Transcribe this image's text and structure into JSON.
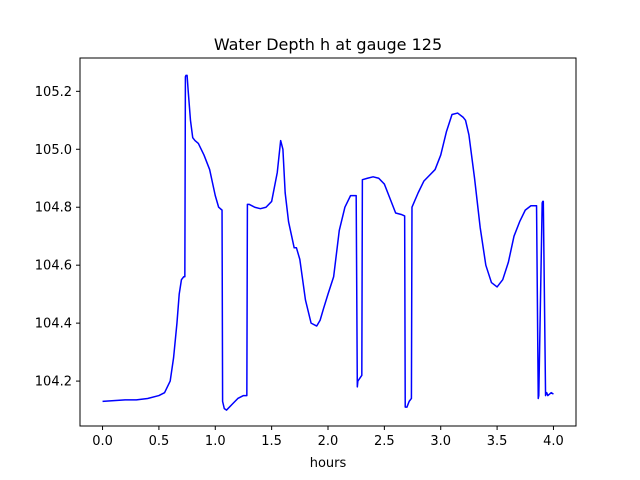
{
  "chart_data": {
    "type": "line",
    "title": "Water Depth h at gauge 125",
    "xlabel": "hours",
    "ylabel": "",
    "xlim": [
      -0.2,
      4.2
    ],
    "ylim": [
      104.045,
      105.315
    ],
    "grid": false,
    "legend": "none",
    "x_ticks": [
      0.0,
      0.5,
      1.0,
      1.5,
      2.0,
      2.5,
      3.0,
      3.5,
      4.0
    ],
    "x_tick_labels": [
      "0.0",
      "0.5",
      "1.0",
      "1.5",
      "2.0",
      "2.5",
      "3.0",
      "3.5",
      "4.0"
    ],
    "y_ticks": [
      104.2,
      104.4,
      104.6,
      104.8,
      105.0,
      105.2
    ],
    "y_tick_labels": [
      "104.2",
      "104.4",
      "104.6",
      "104.8",
      "105.0",
      "105.2"
    ],
    "series": [
      {
        "color": "#0000ff",
        "x": [
          0.0,
          0.2,
          0.3,
          0.4,
          0.5,
          0.55,
          0.6,
          0.63,
          0.66,
          0.68,
          0.7,
          0.72,
          0.73,
          0.735,
          0.74,
          0.75,
          0.76,
          0.78,
          0.8,
          0.82,
          0.85,
          0.9,
          0.95,
          1.0,
          1.03,
          1.06,
          1.065,
          1.08,
          1.1,
          1.15,
          1.2,
          1.25,
          1.28,
          1.285,
          1.3,
          1.35,
          1.4,
          1.45,
          1.5,
          1.55,
          1.58,
          1.6,
          1.62,
          1.65,
          1.7,
          1.72,
          1.75,
          1.8,
          1.85,
          1.9,
          1.93,
          1.96,
          2.0,
          2.05,
          2.1,
          2.15,
          2.2,
          2.25,
          2.26,
          2.265,
          2.3,
          2.305,
          2.35,
          2.4,
          2.45,
          2.5,
          2.55,
          2.6,
          2.65,
          2.68,
          2.685,
          2.7,
          2.72,
          2.74,
          2.745,
          2.8,
          2.85,
          2.9,
          2.95,
          3.0,
          3.05,
          3.1,
          3.15,
          3.2,
          3.22,
          3.25,
          3.3,
          3.35,
          3.4,
          3.45,
          3.5,
          3.55,
          3.6,
          3.65,
          3.7,
          3.75,
          3.8,
          3.85,
          3.865,
          3.87,
          3.9,
          3.905,
          3.91,
          3.93,
          3.935,
          3.94,
          3.95,
          3.98,
          4.0
        ],
        "y": [
          104.13,
          104.135,
          104.135,
          104.14,
          104.15,
          104.16,
          104.2,
          104.28,
          104.4,
          104.5,
          104.55,
          104.56,
          104.56,
          105.25,
          105.255,
          105.255,
          105.2,
          105.1,
          105.04,
          105.03,
          105.02,
          104.98,
          104.93,
          104.84,
          104.8,
          104.79,
          104.13,
          104.105,
          104.1,
          104.12,
          104.14,
          104.15,
          104.15,
          104.81,
          104.81,
          104.8,
          104.795,
          104.8,
          104.82,
          104.92,
          105.03,
          105.0,
          104.85,
          104.75,
          104.66,
          104.66,
          104.62,
          104.48,
          104.4,
          104.39,
          104.41,
          104.45,
          104.5,
          104.56,
          104.72,
          104.8,
          104.84,
          104.84,
          104.18,
          104.2,
          104.22,
          104.895,
          104.9,
          104.905,
          104.9,
          104.88,
          104.83,
          104.78,
          104.775,
          104.77,
          104.11,
          104.11,
          104.13,
          104.14,
          104.8,
          104.85,
          104.89,
          104.91,
          104.93,
          104.98,
          105.06,
          105.12,
          105.125,
          105.11,
          105.1,
          105.05,
          104.9,
          104.73,
          104.6,
          104.54,
          104.525,
          104.55,
          104.61,
          104.7,
          104.75,
          104.79,
          104.805,
          104.805,
          104.14,
          104.15,
          104.815,
          104.82,
          104.82,
          104.15,
          104.16,
          104.16,
          104.15,
          104.16,
          104.155
        ]
      }
    ]
  }
}
